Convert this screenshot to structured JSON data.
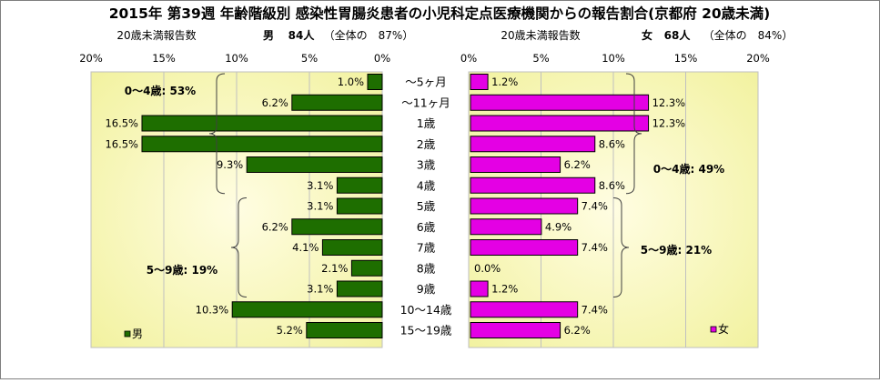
{
  "title": "2015年 第39週 年齢階級別 感染性胃腸炎患者の小児科定点医療機関からの報告割合(京都府 20歳未満)",
  "male_header": {
    "label": "20歳未満報告数",
    "sex": "男",
    "count": "84人",
    "share": "（全体の　87%）"
  },
  "female_header": {
    "label": "20歳未満報告数",
    "sex": "女",
    "count": "68人",
    "share": "（全体の　84%）"
  },
  "colors": {
    "male": "#1e6e00",
    "female": "#e400e4",
    "bar_stroke": "#000000",
    "plot_bg_center": "#fffde2",
    "plot_bg_edge": "#f2f2a0",
    "gridline": "#c0c0c0",
    "text": "#000000"
  },
  "chart_data": [
    {
      "type": "bar",
      "orientation": "horizontal",
      "direction": "right-to-left",
      "categories": [
        "～5ヶ月",
        "～11ヶ月",
        "1歳",
        "2歳",
        "3歳",
        "4歳",
        "5歳",
        "6歳",
        "7歳",
        "8歳",
        "9歳",
        "10～14歳",
        "15～19歳"
      ],
      "series": [
        {
          "name": "男",
          "values": [
            1.0,
            6.2,
            16.5,
            16.5,
            9.3,
            3.1,
            3.1,
            6.2,
            4.1,
            2.1,
            3.1,
            10.3,
            5.2
          ],
          "labels": [
            "1.0%",
            "6.2%",
            "16.5%",
            "16.5%",
            "9.3%",
            "3.1%",
            "3.1%",
            "6.2%",
            "4.1%",
            "2.1%",
            "3.1%",
            "10.3%",
            "5.2%"
          ]
        }
      ],
      "xlim": [
        0,
        20
      ],
      "xticks": [
        20,
        15,
        10,
        5,
        0
      ],
      "xtick_labels": [
        "20%",
        "15%",
        "10%",
        "5%",
        "0%"
      ],
      "grid": true,
      "legend": "bottom-left",
      "annotations": [
        {
          "text": "0～4歳: 53%",
          "range": [
            0,
            5
          ]
        },
        {
          "text": "5～9歳: 19%",
          "range": [
            6,
            10
          ]
        }
      ]
    },
    {
      "type": "bar",
      "orientation": "horizontal",
      "direction": "left-to-right",
      "categories": [
        "～5ヶ月",
        "～11ヶ月",
        "1歳",
        "2歳",
        "3歳",
        "4歳",
        "5歳",
        "6歳",
        "7歳",
        "8歳",
        "9歳",
        "10～14歳",
        "15～19歳"
      ],
      "series": [
        {
          "name": "女",
          "values": [
            1.2,
            12.3,
            12.3,
            8.6,
            6.2,
            8.6,
            7.4,
            4.9,
            7.4,
            0.0,
            1.2,
            7.4,
            6.2
          ],
          "labels": [
            "1.2%",
            "12.3%",
            "12.3%",
            "8.6%",
            "6.2%",
            "8.6%",
            "7.4%",
            "4.9%",
            "7.4%",
            "0.0%",
            "1.2%",
            "7.4%",
            "6.2%"
          ]
        }
      ],
      "xlim": [
        0,
        20
      ],
      "xticks": [
        0,
        5,
        10,
        15,
        20
      ],
      "xtick_labels": [
        "0%",
        "5%",
        "10%",
        "15%",
        "20%"
      ],
      "grid": true,
      "legend": "bottom-right",
      "annotations": [
        {
          "text": "0～4歳: 49%",
          "range": [
            0,
            5
          ]
        },
        {
          "text": "5～9歳: 21%",
          "range": [
            6,
            10
          ]
        }
      ]
    }
  ]
}
